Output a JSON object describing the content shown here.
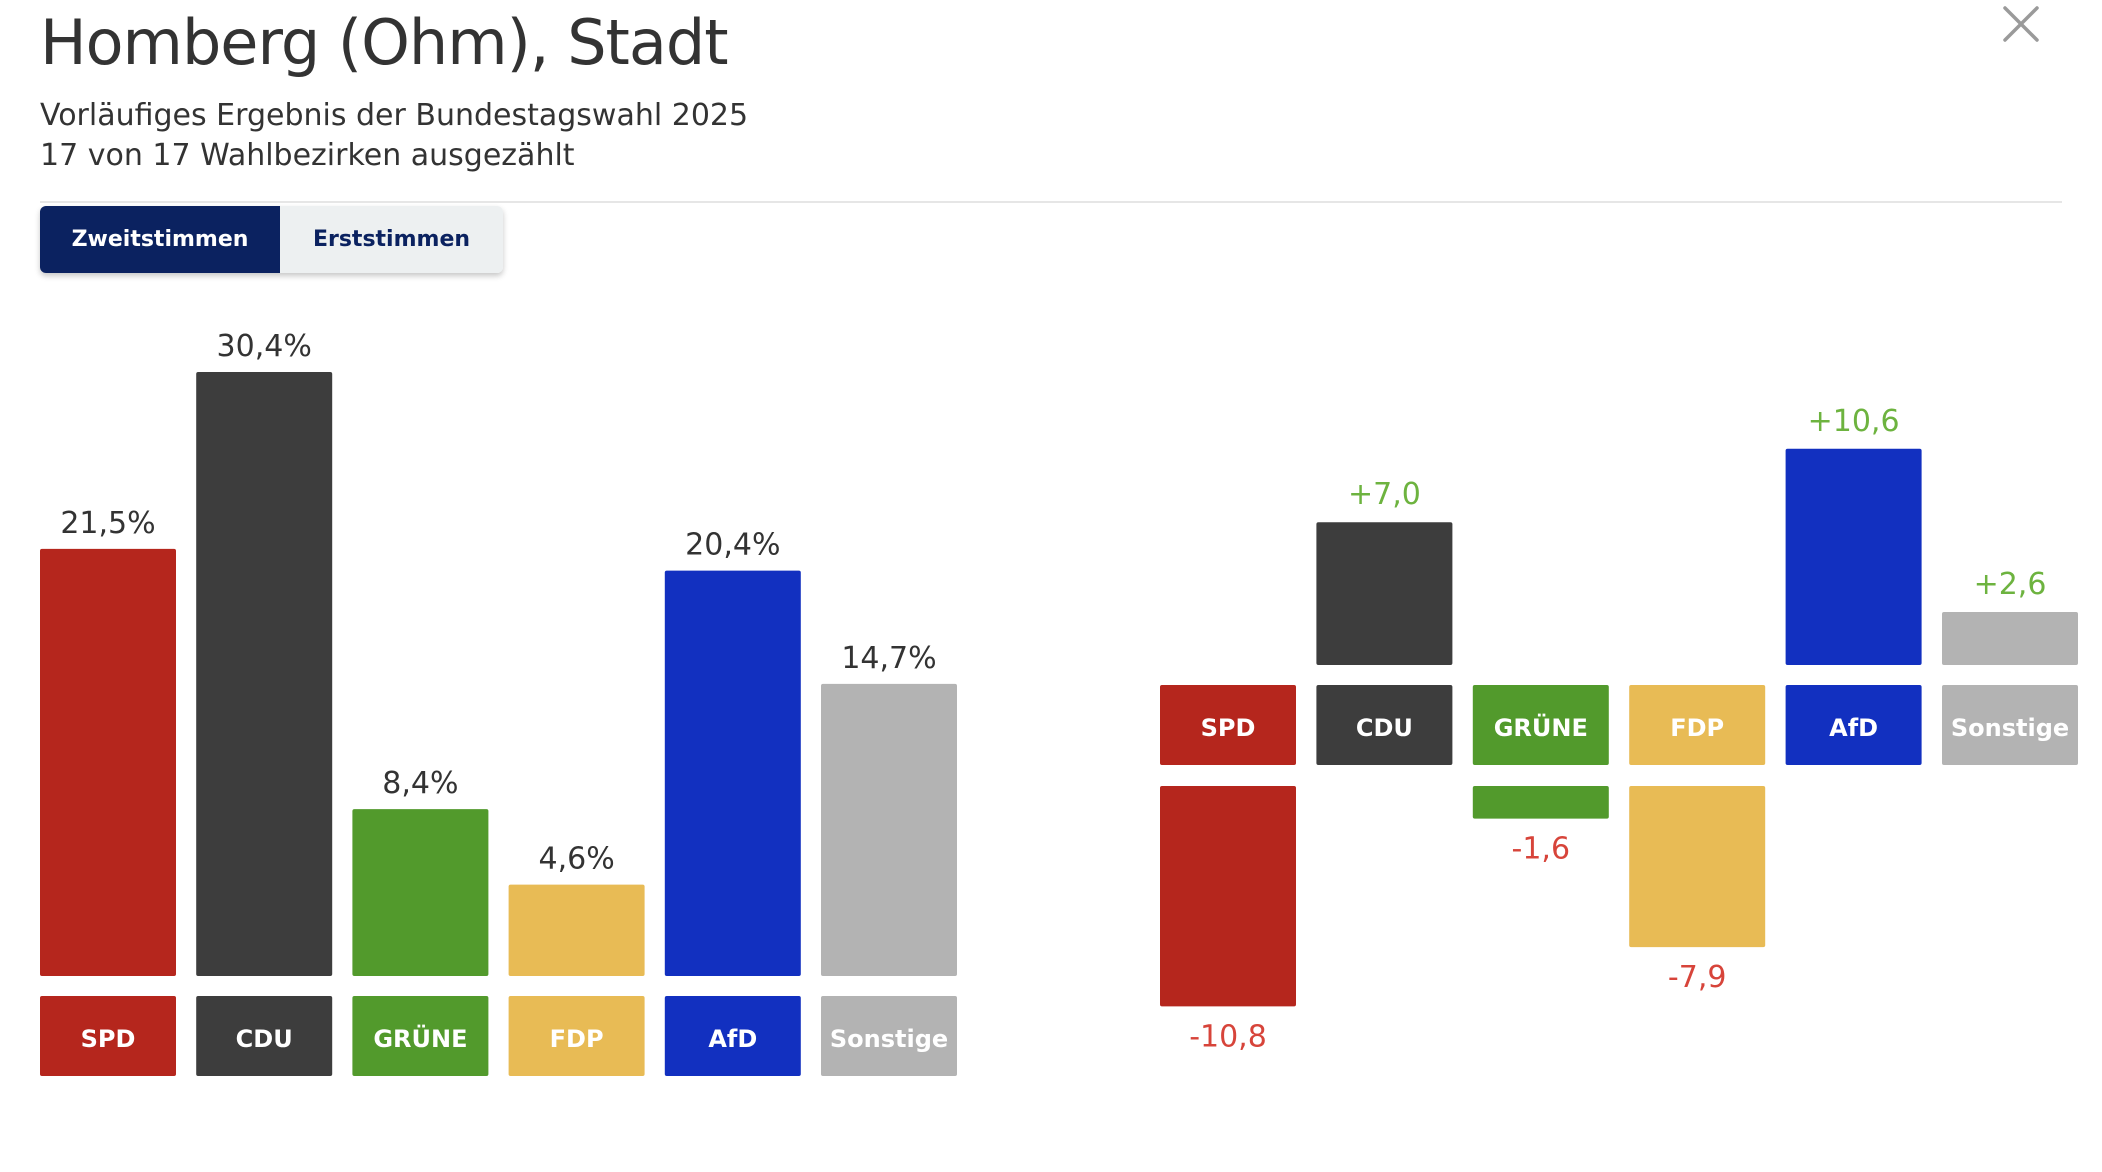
{
  "header": {
    "title": "Homberg (Ohm), Stadt",
    "subtitle_line1": "Vorläufiges Ergebnis der Bundestagswahl 2025",
    "subtitle_line2": "17 von 17 Wahlbezirken ausgezählt",
    "close_icon": "close-icon"
  },
  "tabs": {
    "active_label": "Zweitstimmen",
    "inactive_label": "Erststimmen"
  },
  "colors": {
    "positive_change": "#6db33f",
    "negative_change": "#d7443a",
    "label_text": "#333333"
  },
  "chart_data": [
    {
      "type": "bar",
      "categories": [
        "SPD",
        "CDU",
        "GRÜNE",
        "FDP",
        "AfD",
        "Sonstige"
      ],
      "values": [
        21.5,
        30.4,
        8.4,
        4.6,
        20.4,
        14.7
      ],
      "value_labels": [
        "21,5%",
        "30,4%",
        "8,4%",
        "4,6%",
        "20,4%",
        "14,7%"
      ],
      "colors": [
        "#b5261d",
        "#3d3d3d",
        "#529a2c",
        "#e8bb55",
        "#1230c0",
        "#b3b3b3"
      ],
      "ylim": [
        0,
        30.4
      ],
      "grid": false
    },
    {
      "type": "bar",
      "categories": [
        "SPD",
        "CDU",
        "GRÜNE",
        "FDP",
        "AfD",
        "Sonstige"
      ],
      "values": [
        -10.8,
        7.0,
        -1.6,
        -7.9,
        10.6,
        2.6
      ],
      "value_labels": [
        "-10,8",
        "+7,0",
        "-1,6",
        "-7,9",
        "+10,6",
        "+2,6"
      ],
      "colors": [
        "#b5261d",
        "#3d3d3d",
        "#529a2c",
        "#e8bb55",
        "#1230c0",
        "#b3b3b3"
      ],
      "grid": false
    }
  ]
}
